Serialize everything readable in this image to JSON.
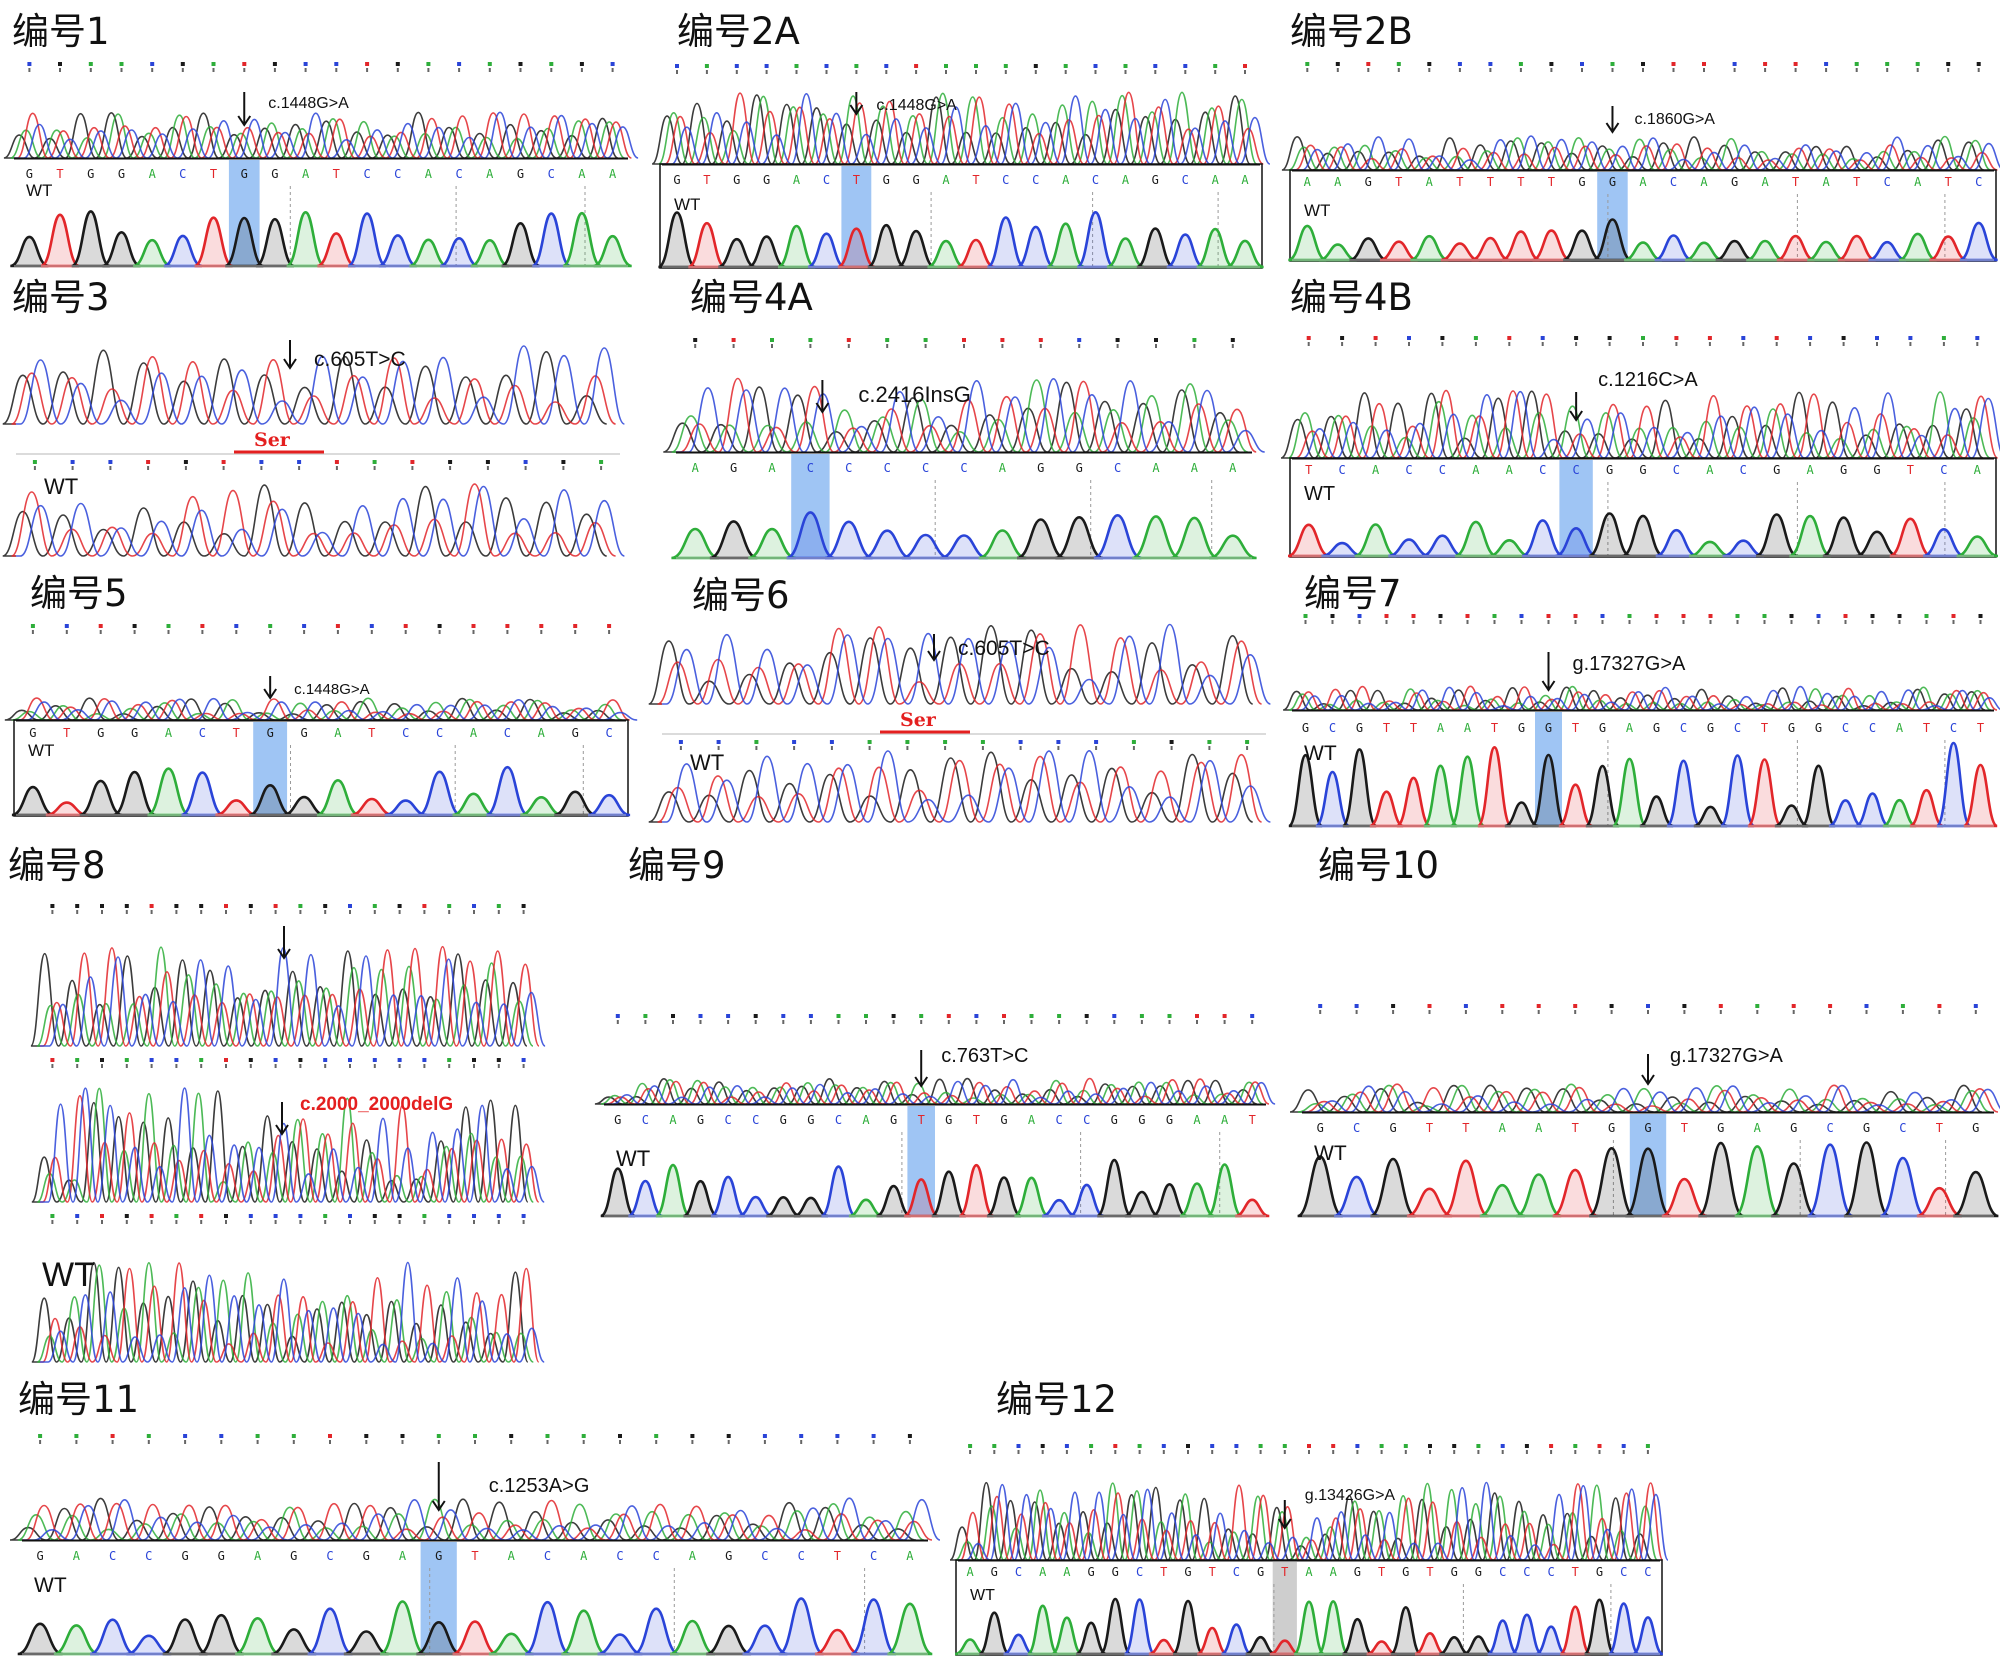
{
  "colors": {
    "A": "#2eae3a",
    "C": "#2a44d8",
    "G": "#1a1a1a",
    "T": "#e2262a",
    "highlight": "#7fb2f0",
    "highlight_gray": "#bdbdbd",
    "mutation_red": "#e41f1f"
  },
  "panels": [
    {
      "id": "p1",
      "title": "编号1",
      "mutation": "c.1448G>A",
      "wt_label": "WT",
      "sequence": "GTGGACTGGATCCACAGCAA",
      "highlight_index": 7
    },
    {
      "id": "p2a",
      "title": "编号2A",
      "mutation": "c.1448G>A",
      "wt_label": "WT",
      "sequence": "GTGGACTGGATCCACAGCAA",
      "highlight_index": 6
    },
    {
      "id": "p2b",
      "title": "编号2B",
      "mutation": "c.1860G>A",
      "wt_label": "WT",
      "sequence": "AAGTATTTTGGACAGATATCATC",
      "highlight_index": 10
    },
    {
      "id": "p3",
      "title": "编号3",
      "mutation": "c.605T>C",
      "wt_label": "WT",
      "amino_acid": "Ser",
      "sequence": ""
    },
    {
      "id": "p4a",
      "title": "编号4A",
      "mutation": "c.2416InsG",
      "wt_label": "",
      "sequence": "AGACCCCCAGGCAAA",
      "highlight_index": 3
    },
    {
      "id": "p4b",
      "title": "编号4B",
      "mutation": "c.1216C>A",
      "wt_label": "WT",
      "sequence": "TCACCAACCGGCACGAGGTCA",
      "highlight_index": 8
    },
    {
      "id": "p5",
      "title": "编号5",
      "mutation": "c.1448G>A",
      "wt_label": "WT",
      "sequence": "GTGGACTGGATCCACAGC",
      "highlight_index": 7
    },
    {
      "id": "p6",
      "title": "编号6",
      "mutation": "c.605T>C",
      "wt_label": "WT",
      "amino_acid": "Ser",
      "sequence": ""
    },
    {
      "id": "p7",
      "title": "编号7",
      "mutation": "g.17327G>A",
      "wt_label": "WT",
      "sequence": "GCGTTAATGGTGAGCGCTGGCCATCT",
      "highlight_index": 9
    },
    {
      "id": "p8",
      "title": "编号8",
      "mutation": "c.2000_2000delG",
      "wt_label": "WT",
      "sequence": ""
    },
    {
      "id": "p9",
      "title": "编号9",
      "mutation": "c.763T>C",
      "wt_label": "WT",
      "sequence": "GCAGCCGGCAGTGTGACCGGGAAT",
      "highlight_index": 11
    },
    {
      "id": "p10",
      "title": "编号10",
      "mutation": "g.17327G>A",
      "wt_label": "WT",
      "sequence": "GCGTTAATGGTGAGCGCTG",
      "highlight_index": 9
    },
    {
      "id": "p11",
      "title": "编号11",
      "mutation": "c.1253A>G",
      "wt_label": "WT",
      "sequence": "GACCGGAGCGAGTACACCAGCCTCA",
      "highlight_index": 11
    },
    {
      "id": "p12",
      "title": "编号12",
      "mutation": "g.13426G>A",
      "wt_label": "WT",
      "sequence": "AGCAAGGCTGTCGTAAGTGTGGCCCTGCC",
      "highlight_index": 13
    }
  ]
}
